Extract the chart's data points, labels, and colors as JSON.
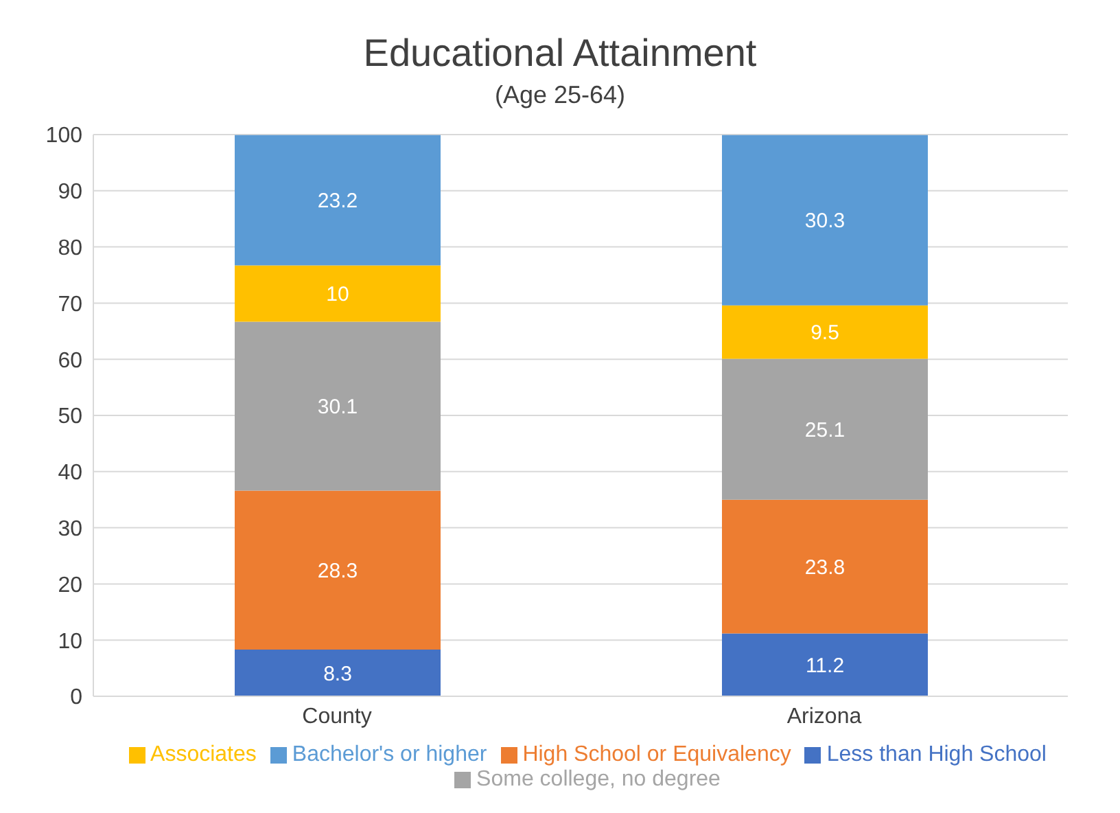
{
  "chart_data": {
    "type": "bar",
    "title": "Educational Attainment",
    "subtitle": "(Age 25-64)",
    "categories": [
      "County",
      "Arizona"
    ],
    "stacked": true,
    "data_labels": true,
    "grid": "y",
    "legend": "bottom",
    "ylim": [
      0,
      100
    ],
    "yticks": [
      0,
      10,
      20,
      30,
      40,
      50,
      60,
      70,
      80,
      90,
      100
    ],
    "series": [
      {
        "name": "Less than High School",
        "color": "#4472c4",
        "values": [
          8.3,
          11.2
        ]
      },
      {
        "name": "High School or Equivalency",
        "color": "#ed7d31",
        "values": [
          28.3,
          23.8
        ]
      },
      {
        "name": "Some college, no degree",
        "color": "#a5a5a5",
        "values": [
          30.1,
          25.1
        ]
      },
      {
        "name": "Associates",
        "color": "#ffc000",
        "values": [
          10,
          9.5
        ]
      },
      {
        "name": "Bachelor's or higher",
        "color": "#5b9bd5",
        "values": [
          23.2,
          30.3
        ]
      }
    ]
  }
}
